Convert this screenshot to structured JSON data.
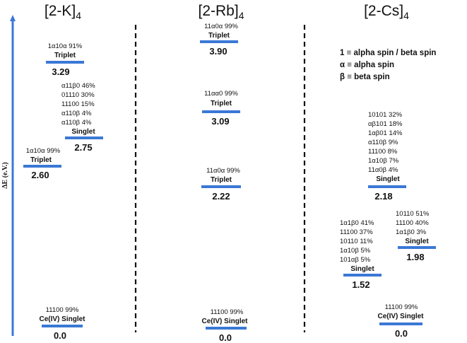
{
  "colors": {
    "axis": "#3a78d6",
    "level": "#3a78d6",
    "text": "#111111"
  },
  "axis": {
    "label": "ΔE (e.V.)"
  },
  "legend": {
    "lines": [
      "1 ≡ alpha spin / beta spin",
      "α ≡ alpha spin",
      "β  ≡ beta spin"
    ]
  },
  "columns": [
    {
      "title": "[2-K]",
      "subscript": "4",
      "levels": [
        {
          "configs": [
            "1α10α   91%"
          ],
          "state": "Triplet",
          "energy": "3.29"
        },
        {
          "configs": [
            "α11β0  46%",
            "01110  30%",
            "11100  15%",
            "α110β    4%",
            "α110β    4%"
          ],
          "state": "Singlet",
          "energy": "2.75"
        },
        {
          "configs": [
            "1α10α   99%"
          ],
          "state": "Triplet",
          "energy": "2.60"
        },
        {
          "configs": [
            "11100  99%"
          ],
          "state": "Ce(IV) Singlet",
          "energy": "0.0"
        }
      ]
    },
    {
      "title": "[2-Rb]",
      "subscript": "4",
      "levels": [
        {
          "configs": [
            "11α0α   99%"
          ],
          "state": "Triplet",
          "energy": "3.90"
        },
        {
          "configs": [
            "11αα0   99%"
          ],
          "state": "Triplet",
          "energy": "3.09"
        },
        {
          "configs": [
            "11α0α   99%"
          ],
          "state": "Triplet",
          "energy": "2.22"
        },
        {
          "configs": [
            "11100  99%"
          ],
          "state": "Ce(IV) Singlet",
          "energy": "0.0"
        }
      ]
    },
    {
      "title": "[2-Cs]",
      "subscript": "4",
      "levels": [
        {
          "configs": [
            "10101   32%",
            "αβ101   18%",
            "1αβ01   14%",
            "α110β     9%",
            "11100     8%",
            "1α10β     7%",
            "11α0β     4%"
          ],
          "state": "Singlet",
          "energy": "2.18"
        },
        {
          "configs": [
            "1α1β0  41%",
            "11100  37%",
            "10110  11%",
            "1α10β    5%",
            "101αβ    5%"
          ],
          "state": "Singlet",
          "energy": "1.52"
        },
        {
          "configs": [
            "10110  51%",
            "11100  40%",
            "1α1β0    3%"
          ],
          "state": "Singlet",
          "energy": "1.98"
        },
        {
          "configs": [
            "11100  99%"
          ],
          "state": "Ce(IV) Singlet",
          "energy": "0.0"
        }
      ]
    }
  ]
}
